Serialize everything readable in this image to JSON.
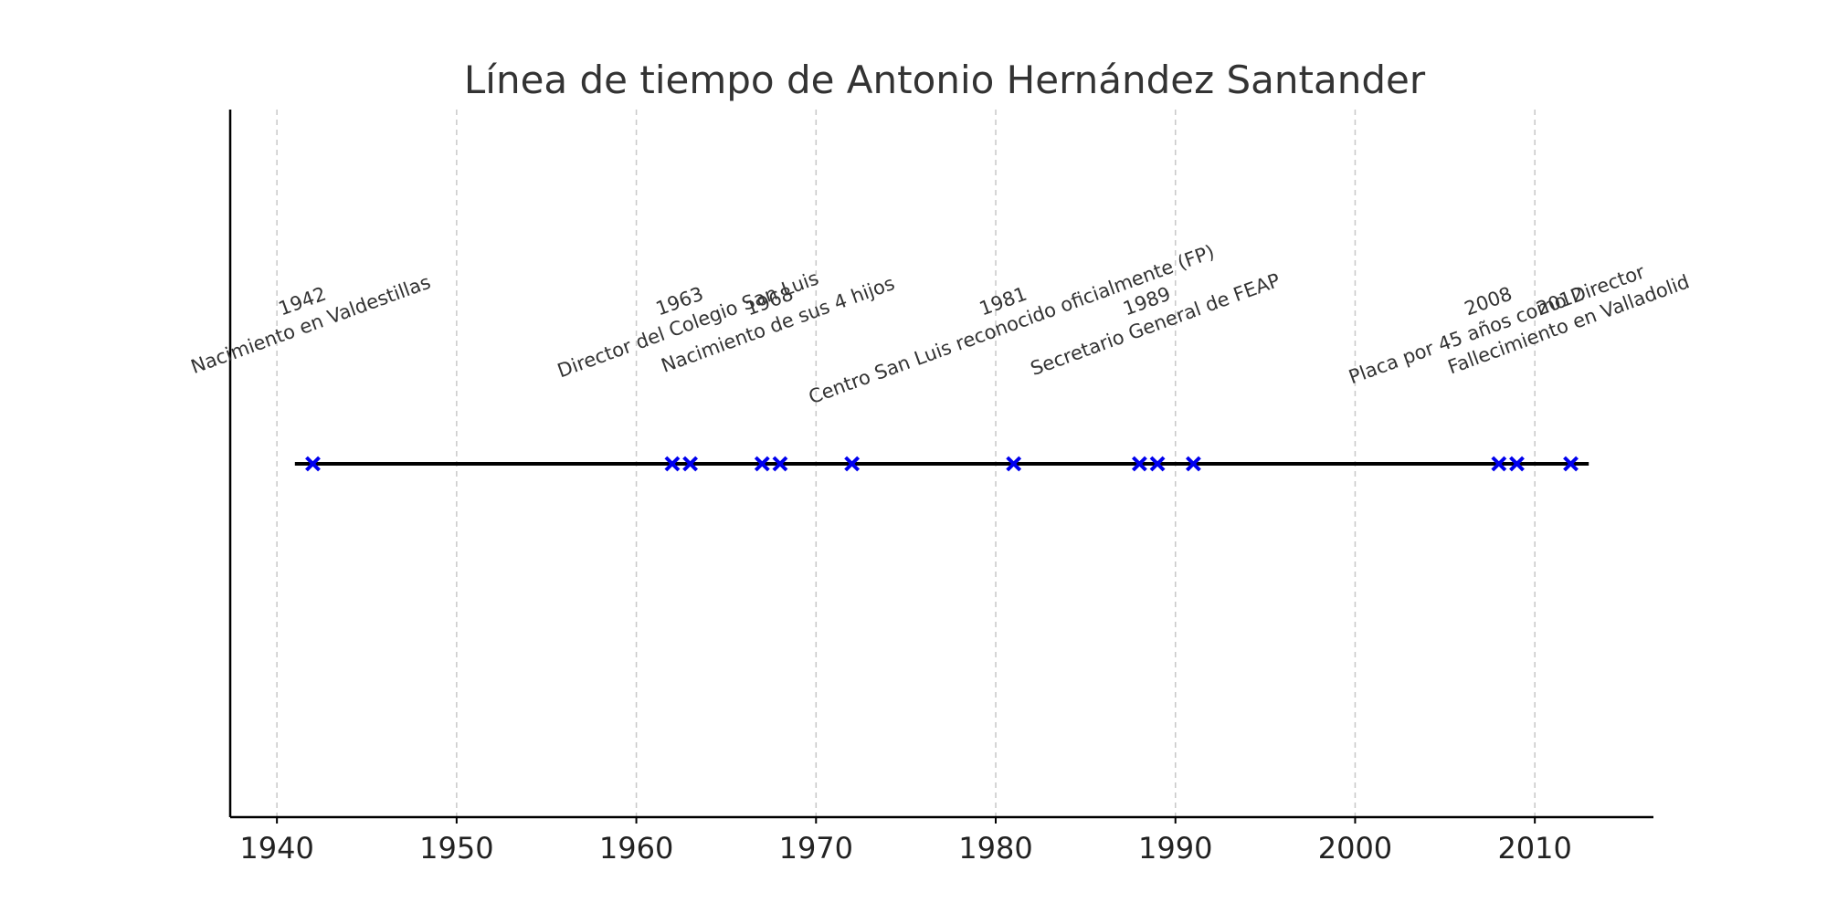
{
  "chart_data": {
    "type": "scatter",
    "title": "Línea de tiempo de Antonio Hernández Santander",
    "xlabel": "",
    "ylabel": "",
    "xlim": [
      1937.4,
      2016.6
    ],
    "grid": "vertical dashed",
    "x_ticks": [
      1940,
      1950,
      1960,
      1970,
      1980,
      1990,
      2000,
      2010
    ],
    "x_tick_labels": [
      "1940",
      "1950",
      "1960",
      "1970",
      "1980",
      "1990",
      "2000",
      "2010"
    ],
    "timeline_range": [
      1941,
      2013
    ],
    "markers": [
      1942,
      1962,
      1963,
      1967,
      1968,
      1972,
      1981,
      1988,
      1989,
      1991,
      2008,
      2009,
      2012
    ],
    "marker_color": "#0000ee",
    "events": [
      {
        "year": "1942",
        "label": "Nacimiento en Valdestillas"
      },
      {
        "year": "1963",
        "label": "Director del Colegio San Luis"
      },
      {
        "year": "1968",
        "label": "Nacimiento de sus 4 hijos"
      },
      {
        "year": "1981",
        "label": "Centro San Luis reconocido oficialmente (FP)"
      },
      {
        "year": "1989",
        "label": "Secretario General de FEAP"
      },
      {
        "year": "2008",
        "label": "Placa por 45 años como Director"
      },
      {
        "year": "2012",
        "label": "Fallecimiento en Valladolid"
      }
    ]
  }
}
